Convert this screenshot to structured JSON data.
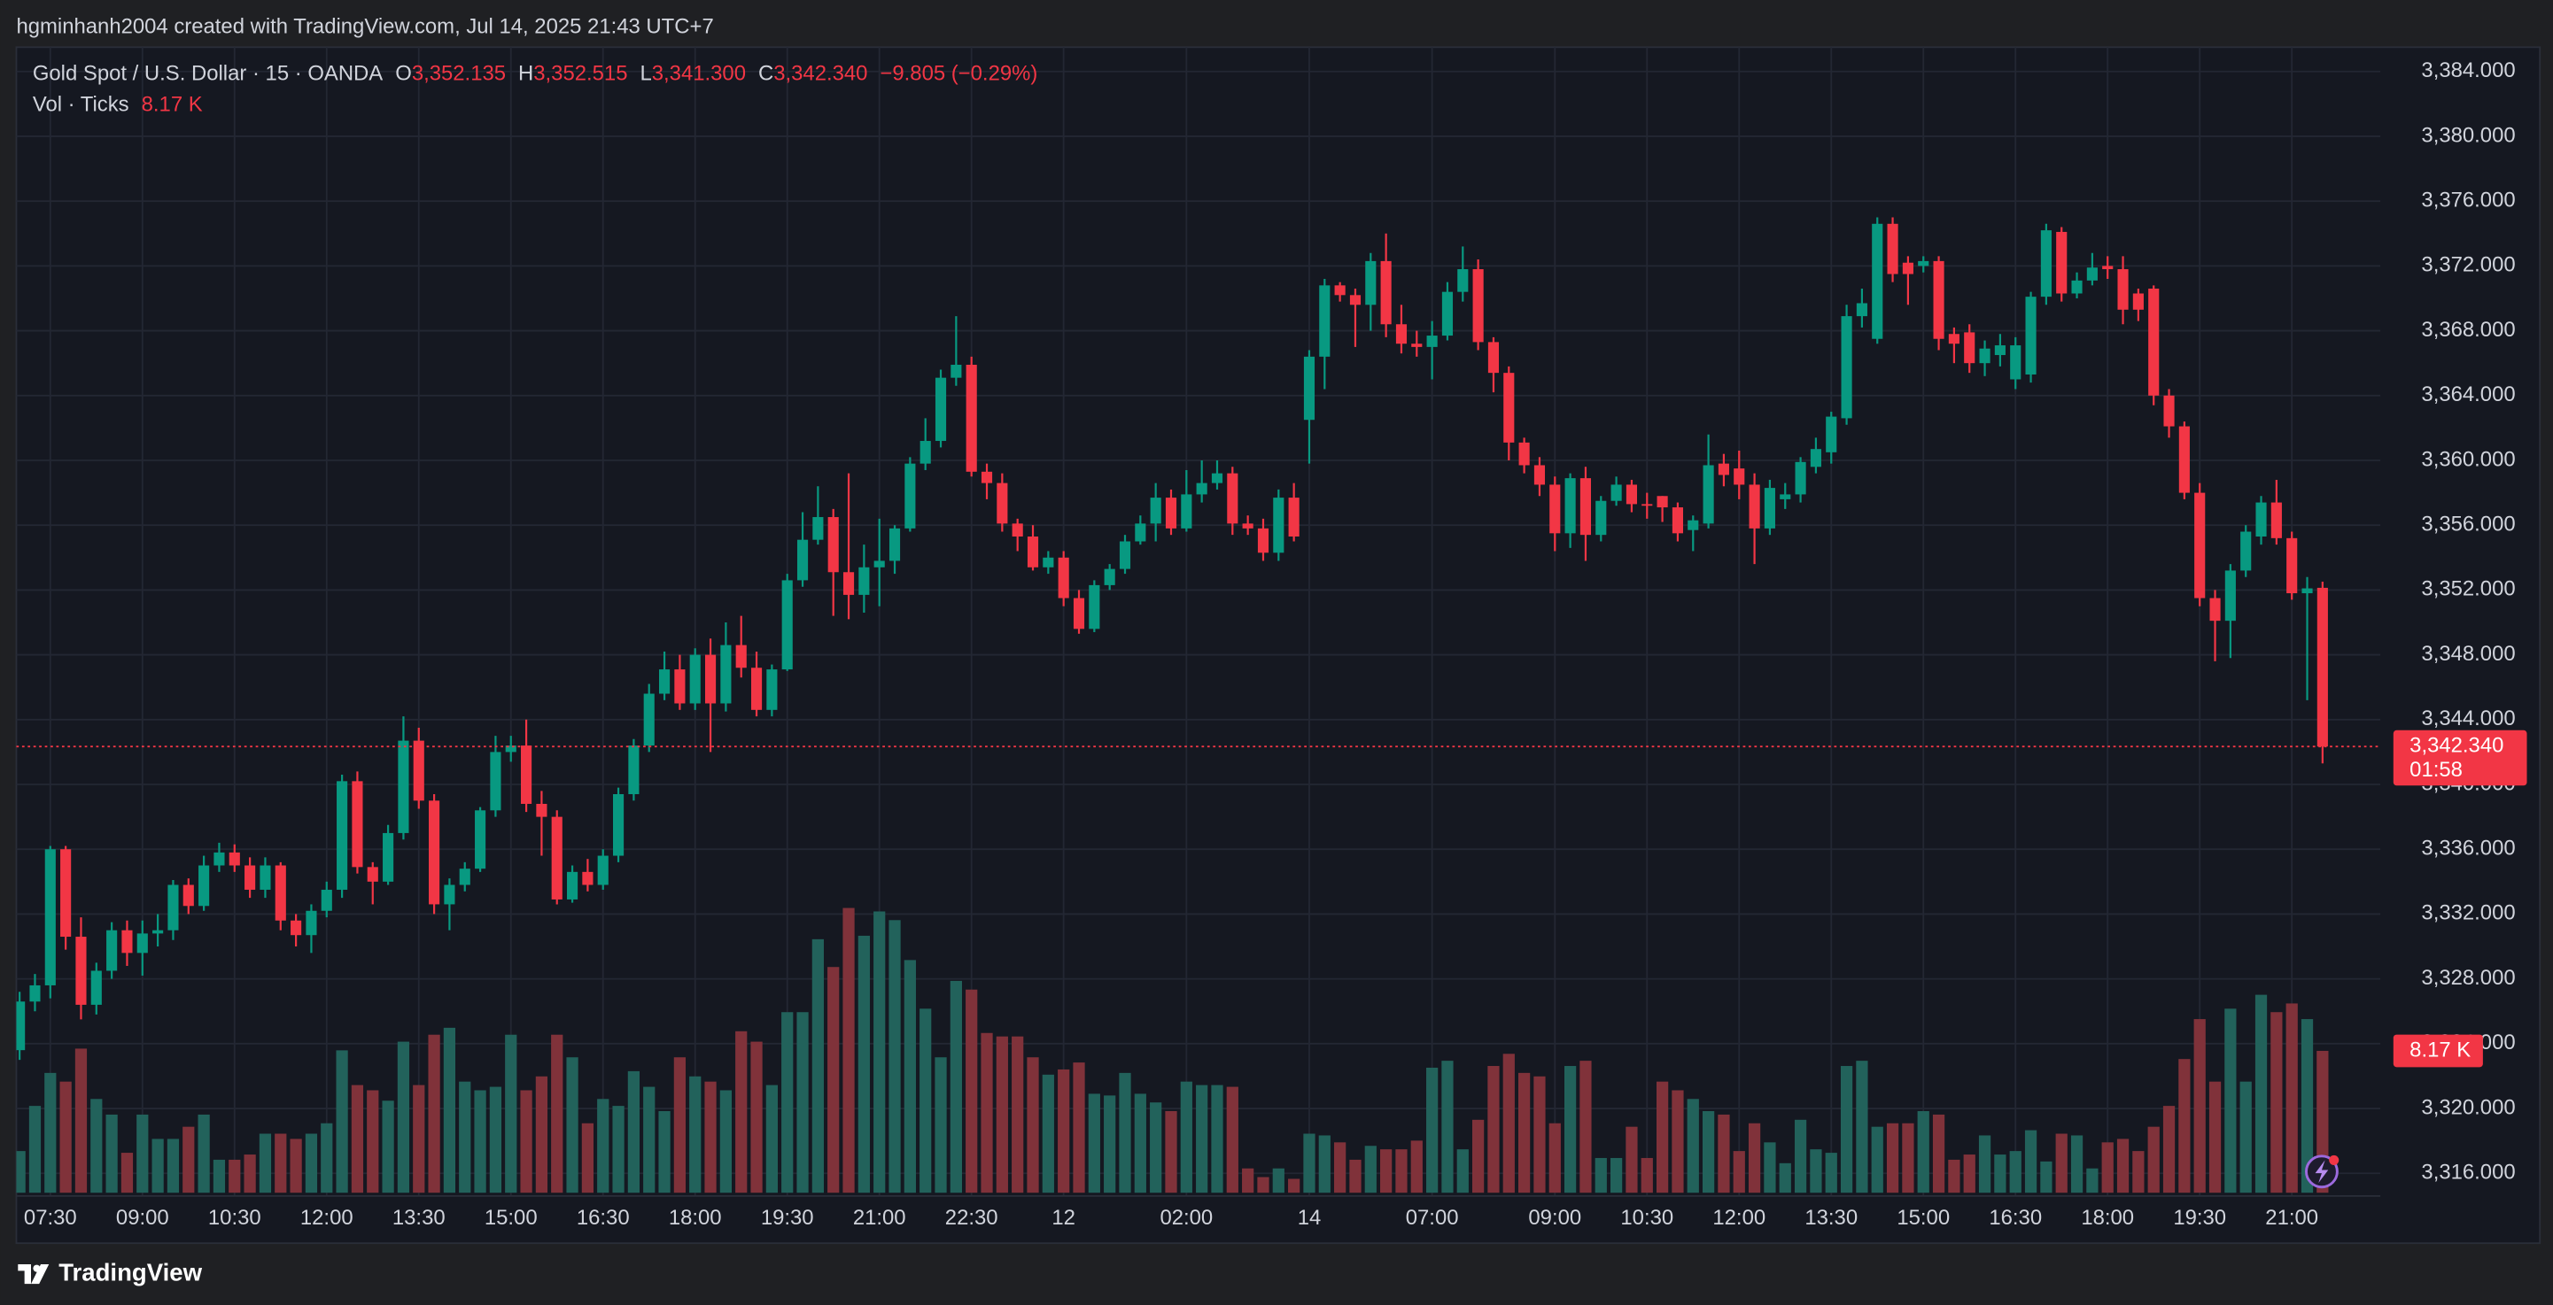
{
  "header": {
    "text": "hgminhanh2004 created with TradingView.com, Jul 14, 2025 21:43 UTC+7"
  },
  "footer": {
    "brand": "TradingView"
  },
  "chart_data": {
    "type": "candlestick",
    "title": "Gold Spot / U.S. Dollar · 15 · OANDA",
    "legend": [
      {
        "key": "O",
        "label": "3,352.135"
      },
      {
        "key": "H",
        "label": "3,352.515"
      },
      {
        "key": "L",
        "label": "3,341.300"
      },
      {
        "key": "C",
        "label": "3,342.340"
      }
    ],
    "change": "−9.805 (−0.29%)",
    "last_price_label": "3,342.340",
    "countdown": "01:58",
    "up_color": "#089981",
    "down_color": "#f23645",
    "grid": true,
    "ylim": [
      3314.6,
      3385.4
    ],
    "yticks": [
      {
        "value": 3316,
        "label": "3,316.000"
      },
      {
        "value": 3320,
        "label": "3,320.000"
      },
      {
        "value": 3324,
        "label": "3,324.000"
      },
      {
        "value": 3328,
        "label": "3,328.000"
      },
      {
        "value": 3332,
        "label": "3,332.000"
      },
      {
        "value": 3336,
        "label": "3,336.000"
      },
      {
        "value": 3340,
        "label": "3,340.000"
      },
      {
        "value": 3344,
        "label": "3,344.000"
      },
      {
        "value": 3348,
        "label": "3,348.000"
      },
      {
        "value": 3352,
        "label": "3,352.000"
      },
      {
        "value": 3356,
        "label": "3,356.000"
      },
      {
        "value": 3360,
        "label": "3,360.000"
      },
      {
        "value": 3364,
        "label": "3,364.000"
      },
      {
        "value": 3368,
        "label": "3,368.000"
      },
      {
        "value": 3372,
        "label": "3,372.000"
      },
      {
        "value": 3376,
        "label": "3,376.000"
      },
      {
        "value": 3380,
        "label": "3,380.000"
      },
      {
        "value": 3384,
        "label": "3,384.000"
      }
    ],
    "categories": [
      null,
      null,
      "07:30",
      null,
      null,
      null,
      null,
      null,
      "09:00",
      null,
      null,
      null,
      null,
      null,
      "10:30",
      null,
      null,
      null,
      null,
      null,
      "12:00",
      null,
      null,
      null,
      null,
      null,
      "13:30",
      null,
      null,
      null,
      null,
      null,
      "15:00",
      null,
      null,
      null,
      null,
      null,
      "16:30",
      null,
      null,
      null,
      null,
      null,
      "18:00",
      null,
      null,
      null,
      null,
      null,
      "19:30",
      null,
      null,
      null,
      null,
      null,
      "21:00",
      null,
      null,
      null,
      null,
      null,
      "22:30",
      null,
      null,
      null,
      null,
      null,
      "12",
      null,
      null,
      null,
      null,
      null,
      null,
      null,
      "02:00",
      null,
      null,
      null,
      null,
      null,
      null,
      null,
      "14",
      null,
      null,
      null,
      null,
      null,
      null,
      null,
      "07:00",
      null,
      null,
      null,
      null,
      null,
      null,
      null,
      "09:00",
      null,
      null,
      null,
      null,
      null,
      "10:30",
      null,
      null,
      null,
      null,
      null,
      "12:00",
      null,
      null,
      null,
      null,
      null,
      "13:30",
      null,
      null,
      null,
      null,
      null,
      "15:00",
      null,
      null,
      null,
      null,
      null,
      "16:30",
      null,
      null,
      null,
      null,
      null,
      "18:00",
      null,
      null,
      null,
      null,
      null,
      "19:30",
      null,
      null,
      null,
      null,
      null,
      "21:00",
      null,
      null
    ],
    "open": [
      3323.6,
      3326.6,
      3327.6,
      3336.0,
      3330.6,
      3326.4,
      3328.5,
      3331.0,
      3329.6,
      3330.8,
      3331.0,
      3333.8,
      3332.5,
      3335.0,
      3335.8,
      3335.0,
      3333.5,
      3335.0,
      3331.6,
      3330.7,
      3332.2,
      3333.5,
      3340.2,
      3334.9,
      3334.0,
      3337.0,
      3342.7,
      3339.0,
      3332.6,
      3333.8,
      3334.8,
      3338.4,
      3342.0,
      3342.4,
      3338.8,
      3338.0,
      3332.9,
      3334.6,
      3333.8,
      3335.6,
      3339.4,
      3342.4,
      3345.6,
      3347.1,
      3345.0,
      3348.0,
      3345.0,
      3348.6,
      3347.2,
      3344.6,
      3347.1,
      3352.6,
      3355.1,
      3356.5,
      3353.1,
      3351.7,
      3353.4,
      3353.8,
      3355.8,
      3359.8,
      3361.2,
      3365.1,
      3365.9,
      3359.3,
      3358.6,
      3356.1,
      3355.3,
      3353.4,
      3354.0,
      3351.5,
      3349.6,
      3352.3,
      3353.3,
      3355.0,
      3356.1,
      3357.7,
      3355.8,
      3357.9,
      3358.6,
      3359.2,
      3356.1,
      3355.8,
      3354.3,
      3357.7,
      3362.5,
      3366.4,
      3370.8,
      3370.2,
      3369.6,
      3372.3,
      3368.4,
      3367.2,
      3367.0,
      3367.7,
      3370.4,
      3371.8,
      3367.3,
      3365.4,
      3361.1,
      3359.7,
      3358.5,
      3355.5,
      3358.9,
      3355.4,
      3357.5,
      3358.5,
      3357.3,
      3357.8,
      3357.1,
      3355.7,
      3356.1,
      3359.8,
      3359.5,
      3358.5,
      3355.8,
      3357.6,
      3357.9,
      3359.6,
      3360.5,
      3362.6,
      3368.9,
      3367.5,
      3374.6,
      3372.2,
      3372.0,
      3372.3,
      3367.8,
      3367.9,
      3366.0,
      3366.5,
      3365.0,
      3365.3,
      3370.1,
      3374.1,
      3370.3,
      3371.1,
      3372.0,
      3371.8,
      3370.3,
      3370.6,
      3364.0,
      3362.1,
      3358.0,
      3351.5,
      3350.1,
      3353.2,
      3355.3,
      3357.4,
      3355.2,
      3351.8,
      3352.135
    ],
    "high": [
      3327.2,
      3328.3,
      3336.2,
      3336.2,
      3331.8,
      3329.0,
      3331.5,
      3331.6,
      3331.6,
      3332.0,
      3334.1,
      3334.2,
      3335.6,
      3336.4,
      3336.3,
      3335.5,
      3335.5,
      3335.2,
      3332.0,
      3332.6,
      3334.0,
      3340.6,
      3340.8,
      3335.2,
      3337.5,
      3344.2,
      3343.5,
      3339.4,
      3334.2,
      3335.2,
      3338.6,
      3343.0,
      3343.0,
      3344.0,
      3339.6,
      3338.4,
      3335.0,
      3335.4,
      3336.0,
      3339.8,
      3342.8,
      3346.2,
      3348.2,
      3348.0,
      3348.4,
      3349.0,
      3350.0,
      3350.4,
      3348.2,
      3347.4,
      3353.0,
      3356.8,
      3358.4,
      3357.0,
      3359.2,
      3354.8,
      3356.4,
      3356.0,
      3360.2,
      3362.6,
      3365.6,
      3368.9,
      3366.4,
      3359.8,
      3359.2,
      3356.4,
      3356.0,
      3354.4,
      3354.4,
      3352.0,
      3352.6,
      3353.6,
      3355.4,
      3356.6,
      3358.6,
      3358.2,
      3359.4,
      3360.0,
      3360.0,
      3359.6,
      3356.6,
      3356.4,
      3358.2,
      3358.6,
      3366.8,
      3371.2,
      3371.0,
      3370.6,
      3372.8,
      3374.0,
      3369.6,
      3368.0,
      3368.6,
      3371.0,
      3373.2,
      3372.4,
      3367.6,
      3365.8,
      3361.4,
      3360.2,
      3359.0,
      3359.2,
      3359.6,
      3357.8,
      3359.0,
      3358.8,
      3358.0,
      3357.8,
      3357.4,
      3356.6,
      3361.6,
      3360.4,
      3360.6,
      3359.2,
      3358.8,
      3358.6,
      3360.2,
      3361.4,
      3363.0,
      3369.6,
      3370.6,
      3375.0,
      3375.0,
      3372.6,
      3372.6,
      3372.6,
      3368.2,
      3368.4,
      3367.4,
      3367.8,
      3367.6,
      3370.4,
      3374.6,
      3374.4,
      3371.6,
      3372.8,
      3372.6,
      3372.6,
      3370.6,
      3370.8,
      3364.4,
      3362.4,
      3358.6,
      3352.0,
      3353.6,
      3356.0,
      3357.8,
      3358.8,
      3355.6,
      3352.8,
      3352.515
    ],
    "low": [
      3323.0,
      3326.0,
      3326.8,
      3329.8,
      3325.5,
      3325.8,
      3328.0,
      3328.8,
      3328.2,
      3330.0,
      3330.4,
      3332.0,
      3332.2,
      3334.6,
      3334.6,
      3333.0,
      3333.0,
      3331.0,
      3330.0,
      3329.6,
      3331.8,
      3333.0,
      3334.5,
      3332.6,
      3333.8,
      3336.6,
      3338.5,
      3332.0,
      3331.0,
      3333.4,
      3334.6,
      3338.0,
      3341.4,
      3338.3,
      3335.6,
      3332.6,
      3332.7,
      3333.4,
      3333.5,
      3335.2,
      3339.0,
      3342.0,
      3345.2,
      3344.6,
      3344.6,
      3342.0,
      3344.5,
      3346.6,
      3344.2,
      3344.2,
      3347.0,
      3352.2,
      3354.8,
      3350.4,
      3350.2,
      3350.6,
      3351.0,
      3353.0,
      3355.6,
      3359.4,
      3360.8,
      3364.6,
      3359.0,
      3357.6,
      3355.6,
      3354.4,
      3353.2,
      3353.0,
      3351.0,
      3349.3,
      3349.4,
      3352.0,
      3353.0,
      3354.8,
      3355.0,
      3355.4,
      3355.6,
      3357.4,
      3358.2,
      3355.4,
      3355.4,
      3353.8,
      3353.8,
      3355.0,
      3359.8,
      3364.4,
      3369.8,
      3367.0,
      3368.0,
      3367.6,
      3366.6,
      3366.4,
      3365.0,
      3367.4,
      3369.8,
      3366.8,
      3364.2,
      3360.0,
      3359.2,
      3357.8,
      3354.4,
      3354.6,
      3353.8,
      3355.0,
      3357.2,
      3356.8,
      3356.4,
      3356.2,
      3355.0,
      3354.4,
      3355.8,
      3358.4,
      3357.6,
      3353.6,
      3355.4,
      3357.0,
      3357.4,
      3359.2,
      3359.8,
      3362.2,
      3368.2,
      3367.2,
      3371.0,
      3369.6,
      3371.6,
      3366.8,
      3366.0,
      3365.4,
      3365.2,
      3365.8,
      3364.4,
      3364.8,
      3369.6,
      3369.8,
      3370.0,
      3370.8,
      3371.2,
      3368.4,
      3368.6,
      3363.4,
      3361.4,
      3357.6,
      3351.0,
      3347.6,
      3347.8,
      3352.8,
      3354.8,
      3354.8,
      3351.4,
      3345.2,
      3341.3
    ],
    "close": [
      3326.6,
      3327.6,
      3336.0,
      3330.6,
      3326.4,
      3328.5,
      3331.0,
      3329.6,
      3330.8,
      3331.0,
      3333.8,
      3332.5,
      3335.0,
      3335.8,
      3335.0,
      3333.5,
      3335.0,
      3331.6,
      3330.7,
      3332.2,
      3333.5,
      3340.2,
      3334.9,
      3334.0,
      3337.0,
      3342.7,
      3339.0,
      3332.6,
      3333.8,
      3334.8,
      3338.4,
      3342.0,
      3342.4,
      3338.8,
      3338.0,
      3332.9,
      3334.6,
      3333.8,
      3335.6,
      3339.4,
      3342.4,
      3345.6,
      3347.1,
      3345.0,
      3348.0,
      3345.0,
      3348.6,
      3347.2,
      3344.6,
      3347.1,
      3352.6,
      3355.1,
      3356.5,
      3353.1,
      3351.7,
      3353.4,
      3353.8,
      3355.8,
      3359.8,
      3361.2,
      3365.1,
      3365.9,
      3359.3,
      3358.6,
      3356.1,
      3355.3,
      3353.4,
      3354.0,
      3351.5,
      3349.6,
      3352.3,
      3353.3,
      3355.0,
      3356.1,
      3357.7,
      3355.8,
      3357.9,
      3358.6,
      3359.2,
      3356.1,
      3355.8,
      3354.3,
      3357.7,
      3355.3,
      3366.4,
      3370.8,
      3370.2,
      3369.6,
      3372.3,
      3368.4,
      3367.2,
      3367.0,
      3367.7,
      3370.4,
      3371.8,
      3367.3,
      3365.4,
      3361.1,
      3359.7,
      3358.5,
      3355.5,
      3358.9,
      3355.4,
      3357.5,
      3358.5,
      3357.3,
      3357.2,
      3357.1,
      3355.5,
      3356.3,
      3359.7,
      3359.1,
      3358.5,
      3355.8,
      3358.3,
      3357.9,
      3359.9,
      3360.7,
      3362.7,
      3368.9,
      3369.7,
      3374.6,
      3371.5,
      3371.5,
      3372.3,
      3367.5,
      3367.2,
      3366.0,
      3366.9,
      3367.1,
      3367.1,
      3370.1,
      3374.2,
      3370.3,
      3371.1,
      3371.9,
      3371.8,
      3369.3,
      3369.3,
      3364.0,
      3362.1,
      3358.0,
      3351.5,
      3350.1,
      3353.2,
      3355.6,
      3357.4,
      3355.2,
      3351.8,
      3352.1,
      3342.34
    ],
    "volume": {
      "title": "Vol · Ticks",
      "last_label": "8.17 K",
      "up_color": "#22625b",
      "down_color": "#80323a",
      "values": [
        2.4,
        5.0,
        6.9,
        6.4,
        8.3,
        5.4,
        4.5,
        2.3,
        4.5,
        3.1,
        3.1,
        3.8,
        4.5,
        1.9,
        1.9,
        2.2,
        3.4,
        3.4,
        3.1,
        3.4,
        4.0,
        8.2,
        6.2,
        5.9,
        5.3,
        8.7,
        6.2,
        9.1,
        9.5,
        6.4,
        5.9,
        6.1,
        9.1,
        5.9,
        6.7,
        9.1,
        7.8,
        4.0,
        5.4,
        5.0,
        7.0,
        6.1,
        4.7,
        7.8,
        6.7,
        6.4,
        5.9,
        9.3,
        8.7,
        6.2,
        10.4,
        10.4,
        14.6,
        13.0,
        16.4,
        14.8,
        16.2,
        15.7,
        13.4,
        10.6,
        7.8,
        12.2,
        11.7,
        9.2,
        9.0,
        9.0,
        7.8,
        6.8,
        7.1,
        7.5,
        5.7,
        5.6,
        6.9,
        5.7,
        5.2,
        4.7,
        6.4,
        6.2,
        6.2,
        6.1,
        1.4,
        0.9,
        1.4,
        0.8,
        3.4,
        3.3,
        2.9,
        1.9,
        2.7,
        2.5,
        2.5,
        3.0,
        7.2,
        7.6,
        2.5,
        4.2,
        7.3,
        8.0,
        6.9,
        6.7,
        4.0,
        7.3,
        7.6,
        2.0,
        2.0,
        3.8,
        2.0,
        6.4,
        5.9,
        5.4,
        4.7,
        4.5,
        2.4,
        4.0,
        2.9,
        1.7,
        4.2,
        2.5,
        2.3,
        7.3,
        7.6,
        3.8,
        4.0,
        4.0,
        4.7,
        4.5,
        1.9,
        2.2,
        3.3,
        2.2,
        2.4,
        3.6,
        1.8,
        3.4,
        3.3,
        1.4,
        2.9,
        3.1,
        2.4,
        3.8,
        5.0,
        7.7,
        10.0,
        6.4,
        10.6,
        6.4,
        11.4,
        10.4,
        10.9,
        10.0,
        8.17
      ]
    }
  }
}
